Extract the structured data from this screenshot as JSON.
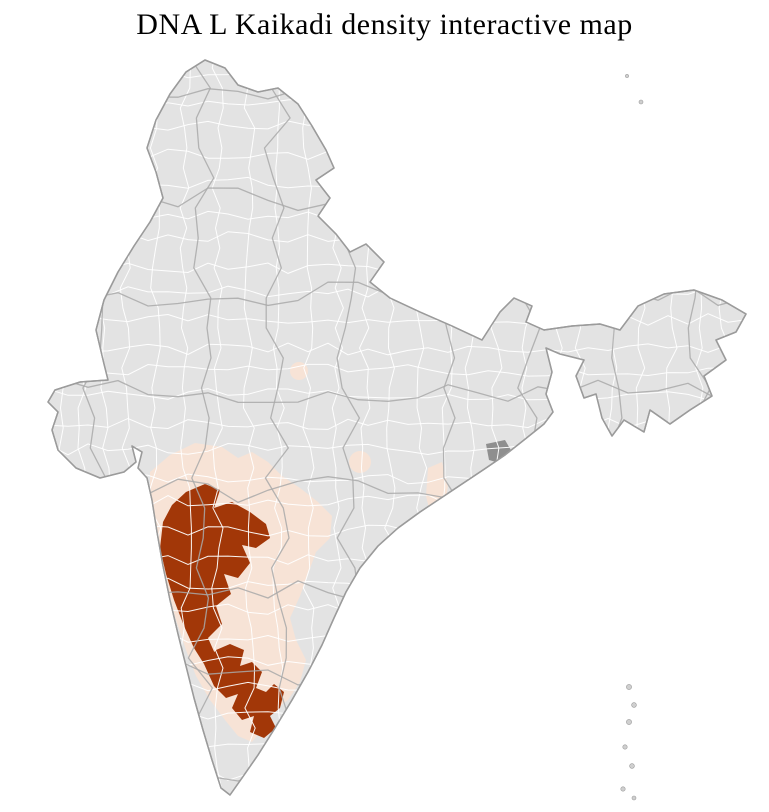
{
  "title": "DNA L Kaikadi density interactive map",
  "map": {
    "colors": {
      "high": "#a23708",
      "low": "#f7e3d6",
      "none": "#e3e3e3",
      "district_border": "#ffffff",
      "state_border": "#a9a9a9",
      "outline": "#9b9b9b",
      "gray_region": "#8f8f8f",
      "island": "#cfcfcf",
      "background": "#ffffff",
      "title_color": "#000000"
    }
  }
}
